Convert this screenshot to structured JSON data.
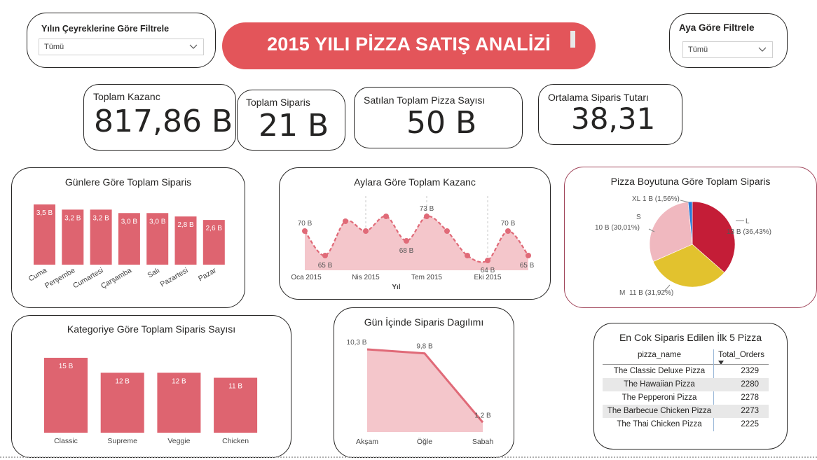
{
  "title": "2015 YILI PİZZA SATIŞ ANALİZİ",
  "filters": {
    "quarter": {
      "title": "Yılın Çeyreklerine Göre Filtrele",
      "value": "Tümü"
    },
    "month": {
      "title": "Aya Göre Filtrele",
      "value": "Tümü"
    }
  },
  "kpis": {
    "revenue": {
      "label": "Toplam Kazanc",
      "value": "817,86 B"
    },
    "orders": {
      "label": "Toplam Siparis",
      "value": "21 B"
    },
    "pizzas": {
      "label": "Satılan Toplam Pizza Sayısı",
      "value": "50 B"
    },
    "avg": {
      "label": "Ortalama Siparis Tutarı",
      "value": "38,31"
    }
  },
  "colors": {
    "accent": "#e3555a",
    "bar": "#de6470",
    "area_fill": "#f4c6cb",
    "line": "#e06a78",
    "pie_L": "#c41d37",
    "pie_M": "#e2c22e",
    "pie_S": "#f0b8bf",
    "pie_XL": "#2a7ad5"
  },
  "chart_data": [
    {
      "type": "bar",
      "title": "Günlere Göre Toplam Siparis",
      "categories": [
        "Cuma",
        "Perşembe",
        "Cumartesi",
        "Çarşamba",
        "Salı",
        "Pazartesi",
        "Pazar"
      ],
      "values": [
        3.5,
        3.2,
        3.2,
        3.0,
        3.0,
        2.8,
        2.6
      ],
      "labels": [
        "3,5 B",
        "3,2 B",
        "3,2 B",
        "3,0 B",
        "3,0 B",
        "2,8 B",
        "2,6 B"
      ],
      "ylim": [
        0,
        3.5
      ]
    },
    {
      "type": "area",
      "title": "Aylara Göre Toplam Kazanc",
      "xlabel": "Yıl",
      "x_ticks": [
        "Oca 2015",
        "Nis 2015",
        "Tem 2015",
        "Eki 2015"
      ],
      "values": [
        70,
        65,
        72,
        70,
        73,
        68,
        73,
        70,
        65,
        64,
        70,
        65
      ],
      "point_labels": {
        "0": "70 B",
        "1": "65 B",
        "5": "68 B",
        "6": "73 B",
        "9": "64 B",
        "10": "70 B",
        "11": "65 B"
      },
      "ylim": [
        62,
        75
      ]
    },
    {
      "type": "pie",
      "title": "Pizza Boyutuna Göre Toplam Siparis",
      "slices": [
        {
          "name": "L",
          "value": 36.43,
          "label": "13 B (36,43%)"
        },
        {
          "name": "M",
          "value": 31.92,
          "label": "11 B (31,92%)"
        },
        {
          "name": "S",
          "value": 30.01,
          "label": "10 B (30,01%)"
        },
        {
          "name": "XL",
          "value": 1.56,
          "label": "1 B (1,56%)"
        }
      ]
    },
    {
      "type": "bar",
      "title": "Kategoriye Göre Toplam Siparis Sayısı",
      "categories": [
        "Classic",
        "Supreme",
        "Veggie",
        "Chicken"
      ],
      "values": [
        15,
        12,
        12,
        11
      ],
      "labels": [
        "15 B",
        "12 B",
        "12 B",
        "11 B"
      ],
      "ylim": [
        0,
        15
      ]
    },
    {
      "type": "area",
      "title": "Gün İçinde Siparis Dagılımı",
      "categories": [
        "Akşam",
        "Öğle",
        "Sabah"
      ],
      "values": [
        10.3,
        9.8,
        1.2
      ],
      "labels": [
        "10,3 B",
        "9,8 B",
        "1,2 B"
      ],
      "ylim": [
        0,
        10.3
      ]
    },
    {
      "type": "table",
      "title": "En Cok Siparis Edilen İlk 5 Pizza",
      "columns": [
        "pizza_name",
        "Total_Orders"
      ],
      "rows": [
        [
          "The Classic Deluxe Pizza",
          "2329"
        ],
        [
          "The Hawaiian Pizza",
          "2280"
        ],
        [
          "The Pepperoni Pizza",
          "2278"
        ],
        [
          "The Barbecue Chicken Pizza",
          "2273"
        ],
        [
          "The Thai Chicken Pizza",
          "2225"
        ]
      ]
    }
  ]
}
